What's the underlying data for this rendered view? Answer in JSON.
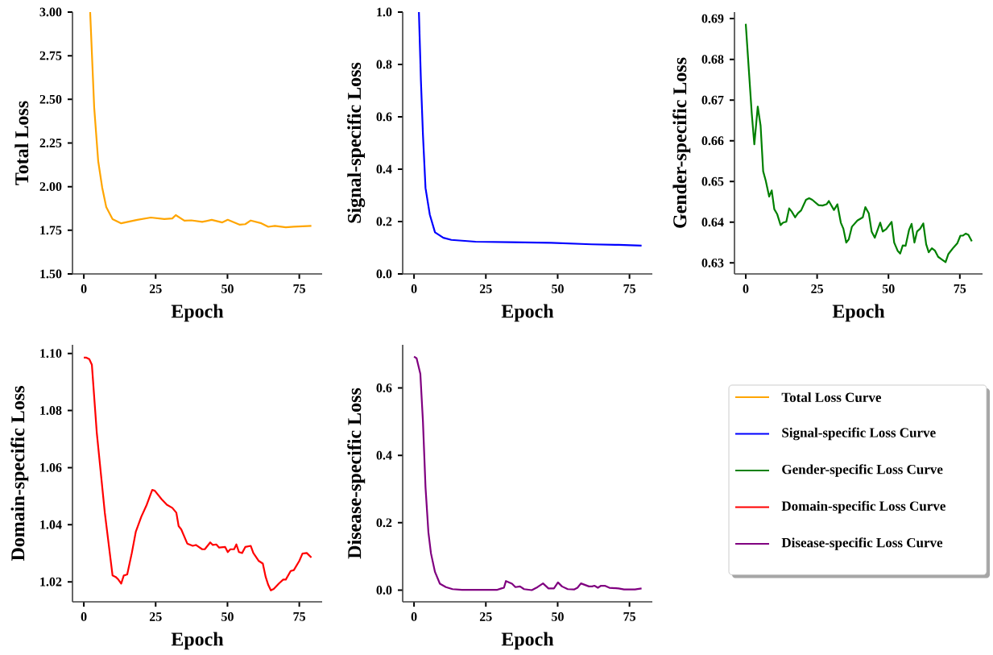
{
  "chart_data": [
    {
      "type": "line",
      "xlabel": "Epoch",
      "ylabel": "Total Loss",
      "legend": "bottom right",
      "xlim": [
        -3.95,
        82.95
      ],
      "xticks": [
        0,
        25,
        50,
        75
      ],
      "ylim": [
        1.5,
        3.0
      ],
      "yticks": [
        {
          "value": 1.5,
          "label": "1.50"
        },
        {
          "value": 1.75,
          "label": "1.75"
        },
        {
          "value": 2.0,
          "label": "2.00"
        },
        {
          "value": 2.25,
          "label": "2.25"
        },
        {
          "value": 2.5,
          "label": "2.50"
        },
        {
          "value": 2.75,
          "label": "2.75"
        },
        {
          "value": 3.0,
          "label": "3.00"
        }
      ],
      "x": [
        2.2,
        3.6,
        5.0,
        6.4,
        7.8,
        10.0,
        13.0,
        18.6,
        23.3,
        28.0,
        30.8,
        32.0,
        35.0,
        37.4,
        41.2,
        44.5,
        48.2,
        50.1,
        54.3,
        56.2,
        58.1,
        61.8,
        64.2,
        66.5,
        70.3,
        73.1,
        79.2
      ],
      "series": [
        {
          "name": "Total Loss Curve",
          "color": "#ffa500",
          "values": [
            3.0,
            2.455,
            2.146,
            1.994,
            1.883,
            1.814,
            1.79,
            1.81,
            1.823,
            1.814,
            1.818,
            1.837,
            1.805,
            1.807,
            1.798,
            1.81,
            1.795,
            1.81,
            1.782,
            1.785,
            1.806,
            1.79,
            1.77,
            1.775,
            1.767,
            1.771,
            1.775
          ]
        }
      ]
    },
    {
      "type": "line",
      "xlabel": "Epoch",
      "ylabel": "Signal-specific Loss",
      "legend": "bottom right",
      "xlim": [
        -3.95,
        82.95
      ],
      "xticks": [
        0,
        25,
        50,
        75
      ],
      "ylim": [
        0.0,
        1.0
      ],
      "yticks": [
        {
          "value": 0.0,
          "label": "0.0"
        },
        {
          "value": 0.2,
          "label": "0.2"
        },
        {
          "value": 0.4,
          "label": "0.4"
        },
        {
          "value": 0.6,
          "label": "0.6"
        },
        {
          "value": 0.8,
          "label": "0.8"
        },
        {
          "value": 1.0,
          "label": "1.0"
        }
      ],
      "x": [
        1.7,
        2.4,
        3.1,
        4.0,
        5.5,
        7.3,
        10.2,
        13.0,
        21.4,
        33.6,
        47.7,
        61.8,
        71.2,
        79.2
      ],
      "series": [
        {
          "name": "Signal-specific Loss Curve",
          "color": "#0000ff",
          "values": [
            1.0,
            0.738,
            0.533,
            0.328,
            0.226,
            0.159,
            0.138,
            0.13,
            0.123,
            0.121,
            0.119,
            0.113,
            0.111,
            0.108
          ]
        }
      ]
    },
    {
      "type": "line",
      "xlabel": "Epoch",
      "ylabel": "Gender-specific Loss",
      "legend": "bottom",
      "xlim": [
        -3.95,
        82.95
      ],
      "xticks": [
        0,
        25,
        50,
        75
      ],
      "ylim": [
        0.6273,
        0.6916
      ],
      "yticks": [
        0.63,
        0.64,
        0.65,
        0.66,
        0.67,
        0.68,
        0.69
      ],
      "x": [
        0,
        2.1,
        3.0,
        4.2,
        5.2,
        6.1,
        7.0,
        8.2,
        9.1,
        10.0,
        11.0,
        12.2,
        13.1,
        14.2,
        15.2,
        16.1,
        17.3,
        18.3,
        19.4,
        21.1,
        22.2,
        23.3,
        25.5,
        26.9,
        28.3,
        29.1,
        30.9,
        32.1,
        33.3,
        34.2,
        35.2,
        36.1,
        37.2,
        39.1,
        41.0,
        41.9,
        43.1,
        44.1,
        45.2,
        47.1,
        48.0,
        49.2,
        51.1,
        52.0,
        53.2,
        54.1,
        55.0,
        56.0,
        57.2,
        58.1,
        59.1,
        60.0,
        61.1,
        62.2,
        63.2,
        64.1,
        65.2,
        66.3,
        67.4,
        68.6,
        70.0,
        71.0,
        72.8,
        74.1,
        75.2,
        76.1,
        77.1,
        78.0,
        79.2
      ],
      "series": [
        {
          "name": "Gender-specific Loss Curve",
          "color": "#008000",
          "values": [
            0.6887,
            0.6667,
            0.6591,
            0.6684,
            0.6637,
            0.6525,
            0.6502,
            0.6463,
            0.6478,
            0.6432,
            0.642,
            0.6393,
            0.6399,
            0.6401,
            0.6434,
            0.6426,
            0.6412,
            0.6422,
            0.6429,
            0.6455,
            0.6459,
            0.6455,
            0.6442,
            0.6441,
            0.6444,
            0.6452,
            0.643,
            0.6444,
            0.6399,
            0.6384,
            0.635,
            0.6358,
            0.6389,
            0.6404,
            0.6412,
            0.6437,
            0.6422,
            0.6377,
            0.6362,
            0.6399,
            0.6377,
            0.6383,
            0.6401,
            0.635,
            0.633,
            0.6323,
            0.6343,
            0.6342,
            0.6381,
            0.6396,
            0.635,
            0.6377,
            0.6384,
            0.6397,
            0.6346,
            0.6326,
            0.6336,
            0.633,
            0.6315,
            0.6309,
            0.6302,
            0.6322,
            0.6338,
            0.6348,
            0.6367,
            0.6367,
            0.6372,
            0.6369,
            0.6353
          ]
        }
      ]
    },
    {
      "type": "line",
      "xlabel": "Epoch",
      "ylabel": "Domain-specific Loss",
      "legend": "right",
      "xlim": [
        -3.95,
        82.95
      ],
      "xticks": [
        0,
        25,
        50,
        75
      ],
      "ylim": [
        1.013,
        1.103
      ],
      "yticks": [
        {
          "value": 1.02,
          "label": "1.02"
        },
        {
          "value": 1.04,
          "label": "1.04"
        },
        {
          "value": 1.06,
          "label": "1.06"
        },
        {
          "value": 1.08,
          "label": "1.08"
        },
        {
          "value": 1.1,
          "label": "1.10"
        }
      ],
      "x": [
        0,
        0.9,
        1.9,
        2.8,
        4.5,
        7.3,
        10.0,
        11.1,
        12.0,
        13.0,
        13.9,
        15.1,
        16.7,
        18.1,
        20.0,
        21.9,
        23.8,
        24.7,
        27.1,
        28.9,
        30.8,
        32.2,
        33.0,
        33.9,
        36.0,
        37.9,
        39.0,
        41.2,
        42.1,
        44.0,
        44.9,
        46.1,
        47.1,
        49.2,
        50.1,
        51.0,
        52.3,
        53.1,
        54.0,
        55.1,
        56.2,
        58.1,
        59.0,
        60.9,
        62.3,
        63.3,
        64.2,
        65.1,
        66.1,
        67.9,
        69.4,
        70.3,
        72.0,
        73.1,
        75.0,
        76.1,
        77.6,
        79.2
      ],
      "series": [
        {
          "name": "Domain-specific Loss Curve",
          "color": "#ff0000",
          "values": [
            1.0985,
            1.0985,
            1.098,
            1.096,
            1.0723,
            1.0442,
            1.0222,
            1.0217,
            1.0208,
            1.0194,
            1.0222,
            1.0226,
            1.0301,
            1.0376,
            1.0428,
            1.047,
            1.0522,
            1.0519,
            1.0489,
            1.047,
            1.0459,
            1.0442,
            1.0395,
            1.0384,
            1.0334,
            1.0326,
            1.0329,
            1.0314,
            1.0314,
            1.0338,
            1.0329,
            1.0331,
            1.032,
            1.0322,
            1.0304,
            1.0314,
            1.0314,
            1.0331,
            1.0304,
            1.0301,
            1.0322,
            1.0326,
            1.0301,
            1.0273,
            1.0264,
            1.0217,
            1.0189,
            1.017,
            1.0175,
            1.0194,
            1.0208,
            1.0208,
            1.0238,
            1.0241,
            1.0273,
            1.0299,
            1.0301,
            1.0285
          ]
        }
      ]
    },
    {
      "type": "line",
      "xlabel": "Epoch",
      "ylabel": "Disease-specific Loss",
      "legend": "right",
      "xlim": [
        -3.95,
        82.95
      ],
      "xticks": [
        0,
        25,
        50,
        75
      ],
      "ylim": [
        -0.0347,
        0.728
      ],
      "yticks": [
        {
          "value": 0.0,
          "label": "0.0"
        },
        {
          "value": 0.2,
          "label": "0.2"
        },
        {
          "value": 0.4,
          "label": "0.4"
        },
        {
          "value": 0.6,
          "label": "0.6"
        }
      ],
      "x": [
        0,
        0.9,
        2.2,
        3.1,
        4.0,
        5.0,
        5.9,
        7.3,
        9.0,
        11.1,
        13.4,
        16.7,
        29.0,
        30.4,
        31.3,
        32.0,
        34.1,
        35.3,
        36.9,
        38.3,
        41.0,
        43.0,
        44.9,
        46.8,
        48.7,
        50.1,
        51.5,
        53.5,
        55.7,
        56.9,
        58.1,
        60.9,
        62.0,
        62.8,
        64.0,
        65.1,
        66.4,
        68.0,
        71.2,
        73.1,
        76.9,
        79.2
      ],
      "series": [
        {
          "name": "Disease-specific Loss Curve",
          "color": "#800080",
          "values": [
            0.693,
            0.688,
            0.642,
            0.501,
            0.305,
            0.172,
            0.109,
            0.054,
            0.019,
            0.009,
            0.003,
            0.001,
            0.001,
            0.005,
            0.007,
            0.027,
            0.019,
            0.009,
            0.011,
            0.003,
            0.0,
            0.009,
            0.02,
            0.005,
            0.005,
            0.023,
            0.011,
            0.003,
            0.002,
            0.007,
            0.02,
            0.011,
            0.011,
            0.013,
            0.007,
            0.013,
            0.013,
            0.007,
            0.005,
            0.002,
            0.002,
            0.005
          ]
        }
      ]
    }
  ]
}
